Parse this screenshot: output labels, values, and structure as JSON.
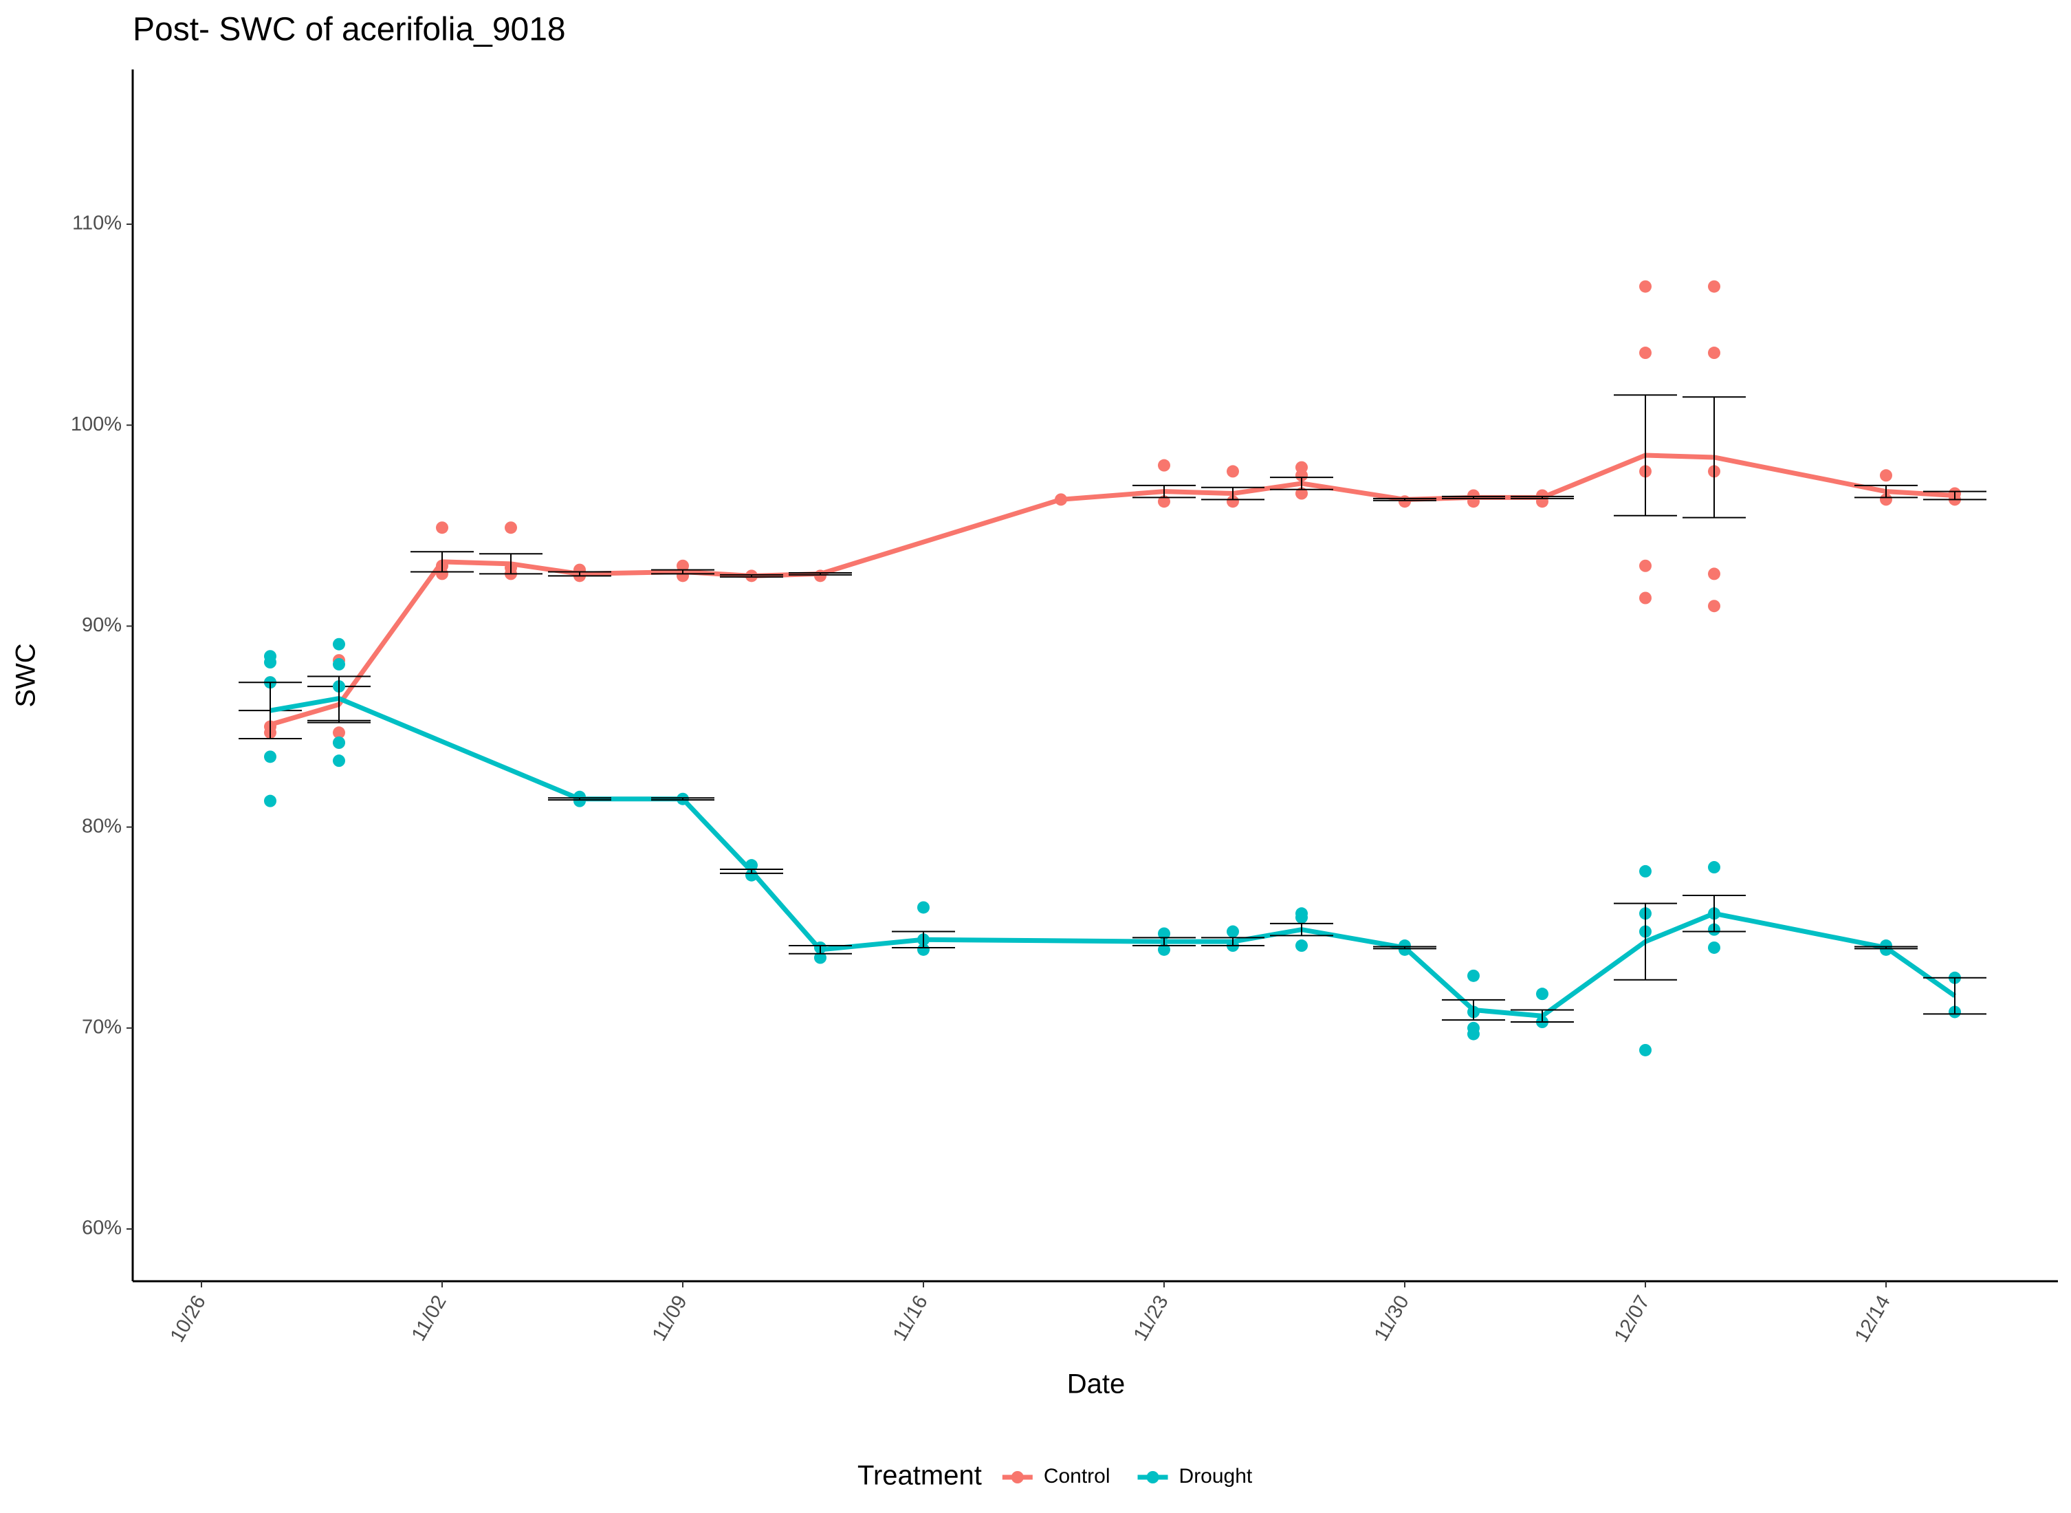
{
  "chart_data": {
    "type": "line",
    "title": "Post- SWC of acerifolia_9018",
    "x_label": "Date",
    "y_label": "SWC",
    "legend_title": "Treatment",
    "legend_position": "bottom",
    "xlim": [
      "10/24",
      "12/19"
    ],
    "xticks": [
      "10/26",
      "11/02",
      "11/09",
      "11/16",
      "11/23",
      "11/30",
      "12/07",
      "12/14"
    ],
    "ylim": [
      57.4,
      117.7
    ],
    "yticks": [
      {
        "value": 60,
        "label": "60%"
      },
      {
        "value": 70,
        "label": "70%"
      },
      {
        "value": 80,
        "label": "80%"
      },
      {
        "value": 90,
        "label": "90%"
      },
      {
        "value": 100,
        "label": "100%"
      },
      {
        "value": 110,
        "label": "110%"
      }
    ],
    "series": [
      {
        "name": "Control",
        "color": "#F8766D",
        "x": [
          "10/28",
          "10/30",
          "11/02",
          "11/04",
          "11/06",
          "11/09",
          "11/11",
          "11/13",
          "11/20",
          "11/23",
          "11/25",
          "11/27",
          "11/30",
          "12/02",
          "12/04",
          "12/07",
          "12/09",
          "12/14",
          "12/16"
        ],
        "values": [
          85.1,
          86.1,
          93.2,
          93.1,
          92.6,
          92.7,
          92.5,
          92.6,
          96.3,
          96.7,
          96.6,
          97.1,
          96.3,
          96.4,
          96.4,
          98.5,
          98.4,
          96.7,
          96.5
        ],
        "errors": [
          0.7,
          0.9,
          0.5,
          0.5,
          0.1,
          0.1,
          0.05,
          0.05,
          null,
          0.3,
          0.3,
          0.3,
          0.05,
          0.05,
          0.05,
          3.0,
          3.0,
          0.3,
          0.2
        ],
        "points_x": [
          "10/28",
          "10/28",
          "10/28",
          "10/30",
          "10/30",
          "10/30",
          "11/02",
          "11/02",
          "11/02",
          "11/04",
          "11/04",
          "11/04",
          "11/06",
          "11/06",
          "11/09",
          "11/09",
          "11/11",
          "11/13",
          "11/20",
          "11/23",
          "11/23",
          "11/25",
          "11/25",
          "11/27",
          "11/27",
          "11/27",
          "11/30",
          "12/02",
          "12/02",
          "12/04",
          "12/04",
          "12/07",
          "12/07",
          "12/07",
          "12/07",
          "12/07",
          "12/09",
          "12/09",
          "12/09",
          "12/09",
          "12/09",
          "12/14",
          "12/14",
          "12/16",
          "12/16"
        ],
        "points_y": [
          87.2,
          85.0,
          84.7,
          88.3,
          84.7,
          84.2,
          94.9,
          93.0,
          92.6,
          94.9,
          92.9,
          92.6,
          92.8,
          92.5,
          93.0,
          92.5,
          92.5,
          92.5,
          96.3,
          98.0,
          96.2,
          97.7,
          96.2,
          97.9,
          97.5,
          96.6,
          96.2,
          96.5,
          96.2,
          96.5,
          96.2,
          106.9,
          103.6,
          97.7,
          93.0,
          91.4,
          106.9,
          103.6,
          97.7,
          92.6,
          91.0,
          97.5,
          96.3,
          96.6,
          96.3
        ]
      },
      {
        "name": "Drought",
        "color": "#00BFC4",
        "x": [
          "10/28",
          "10/30",
          "11/06",
          "11/09",
          "11/11",
          "11/13",
          "11/16",
          "11/23",
          "11/25",
          "11/27",
          "11/30",
          "12/02",
          "12/04",
          "12/07",
          "12/09",
          "12/14",
          "12/16"
        ],
        "values": [
          85.8,
          86.4,
          81.4,
          81.4,
          77.8,
          73.9,
          74.4,
          74.3,
          74.3,
          74.9,
          74.0,
          70.9,
          70.6,
          74.3,
          75.7,
          74.0,
          71.6
        ],
        "errors": [
          1.4,
          1.1,
          0.05,
          0.05,
          0.1,
          0.2,
          0.4,
          0.2,
          0.2,
          0.3,
          0.05,
          0.5,
          0.3,
          1.9,
          0.9,
          0.05,
          0.9
        ],
        "points_x": [
          "10/28",
          "10/28",
          "10/28",
          "10/28",
          "10/28",
          "10/30",
          "10/30",
          "10/30",
          "10/30",
          "10/30",
          "11/06",
          "11/06",
          "11/09",
          "11/11",
          "11/11",
          "11/13",
          "11/13",
          "11/16",
          "11/16",
          "11/16",
          "11/23",
          "11/23",
          "11/25",
          "11/25",
          "11/27",
          "11/27",
          "11/27",
          "11/30",
          "11/30",
          "12/02",
          "12/02",
          "12/02",
          "12/02",
          "12/04",
          "12/04",
          "12/07",
          "12/07",
          "12/07",
          "12/07",
          "12/09",
          "12/09",
          "12/09",
          "12/09",
          "12/14",
          "12/14",
          "12/16",
          "12/16"
        ],
        "points_y": [
          88.5,
          88.2,
          87.2,
          83.5,
          81.3,
          89.1,
          88.1,
          87.0,
          84.2,
          83.3,
          81.5,
          81.3,
          81.4,
          78.1,
          77.6,
          74.0,
          73.5,
          76.0,
          74.4,
          73.9,
          74.7,
          73.9,
          74.8,
          74.1,
          75.7,
          75.5,
          74.1,
          74.1,
          73.9,
          72.6,
          70.8,
          70.0,
          69.7,
          71.7,
          70.3,
          77.8,
          75.7,
          74.8,
          68.9,
          78.0,
          75.7,
          74.9,
          74.0,
          74.1,
          73.9,
          72.5,
          70.8
        ]
      }
    ]
  }
}
